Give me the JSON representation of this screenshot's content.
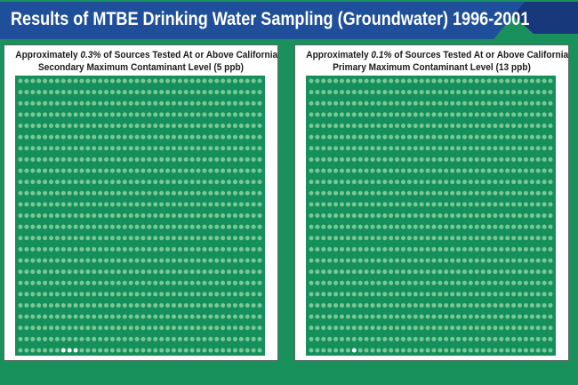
{
  "title": "Results of MTBE Drinking Water Sampling (Groundwater) 1996-2001",
  "colors": {
    "page_background": "#18915c",
    "banner_blue": "#1f4f9a",
    "banner_dark": "#17387a",
    "grid_background": "#15905a",
    "dot_normal": "#7ac79a",
    "dot_highlight": "#ffffff",
    "panel_background": "#ffffff"
  },
  "panels": [
    {
      "title_line1_pre": "Approximately ",
      "title_line1_value": "0.3%",
      "title_line1_post": " of Sources Tested At or Above California",
      "title_line2": "Secondary Maximum Contaminant Level (5 ppb)"
    },
    {
      "title_line1_pre": "Approximately ",
      "title_line1_value": "0.1%",
      "title_line1_post": " of Sources Tested At or Above California",
      "title_line2": "Primary Maximum Contaminant Level (13 ppb)"
    }
  ],
  "chart_data": [
    {
      "type": "waffle",
      "total_dots": 1000,
      "highlighted_dots": 3,
      "highlighted_percent": 0.3,
      "threshold": "Secondary Maximum Contaminant Level (5 ppb)"
    },
    {
      "type": "waffle",
      "total_dots": 1000,
      "highlighted_dots": 1,
      "highlighted_percent": 0.1,
      "threshold": "Primary Maximum Contaminant Level (13 ppb)"
    }
  ]
}
